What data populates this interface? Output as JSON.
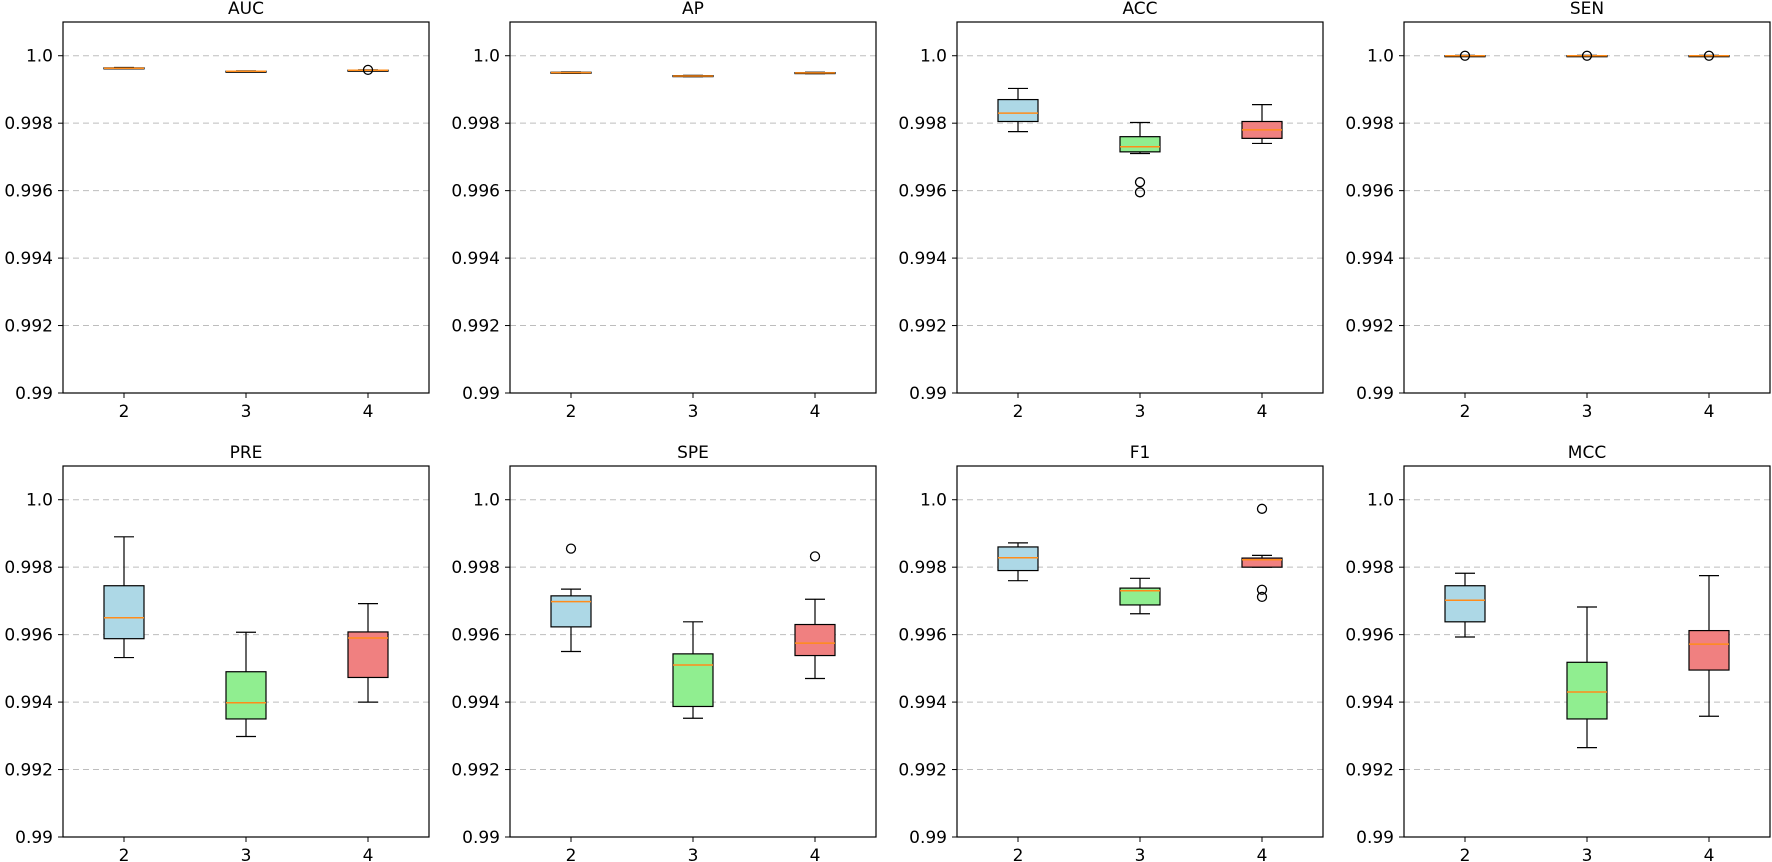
{
  "chart_data": {
    "type": "boxplot",
    "layout": "2x4 grid",
    "ylim": [
      0.99,
      1.001
    ],
    "yticks": [
      "0.99",
      "0.992",
      "0.994",
      "0.996",
      "0.998",
      "1.0"
    ],
    "ytick_values": [
      0.99,
      0.992,
      0.994,
      0.996,
      0.998,
      1.0
    ],
    "categories": [
      "2",
      "3",
      "4"
    ],
    "box_colors": [
      "#add8e6",
      "#90ee90",
      "#f08080"
    ],
    "median_color": "#ff8c1a",
    "grid": "y-dashed",
    "panels": [
      {
        "title": "AUC",
        "boxes": [
          {
            "whislo": 0.99962,
            "q1": 0.99963,
            "med": 0.99963,
            "q3": 0.99964,
            "whishi": 0.99965,
            "fliers": []
          },
          {
            "whislo": 0.99952,
            "q1": 0.99953,
            "med": 0.99954,
            "q3": 0.99954,
            "whishi": 0.99955,
            "fliers": []
          },
          {
            "whislo": 0.99955,
            "q1": 0.99956,
            "med": 0.99957,
            "q3": 0.99957,
            "whishi": 0.99958,
            "fliers": [
              0.99958
            ]
          }
        ]
      },
      {
        "title": "AP",
        "boxes": [
          {
            "whislo": 0.99948,
            "q1": 0.99949,
            "med": 0.9995,
            "q3": 0.99951,
            "whishi": 0.99952,
            "fliers": []
          },
          {
            "whislo": 0.99938,
            "q1": 0.99939,
            "med": 0.9994,
            "q3": 0.99941,
            "whishi": 0.99942,
            "fliers": []
          },
          {
            "whislo": 0.99947,
            "q1": 0.99948,
            "med": 0.99949,
            "q3": 0.9995,
            "whishi": 0.99951,
            "fliers": []
          }
        ]
      },
      {
        "title": "ACC",
        "boxes": [
          {
            "whislo": 0.99775,
            "q1": 0.99805,
            "med": 0.9983,
            "q3": 0.9987,
            "whishi": 0.99903,
            "fliers": []
          },
          {
            "whislo": 0.9971,
            "q1": 0.99715,
            "med": 0.9973,
            "q3": 0.9976,
            "whishi": 0.99802,
            "fliers": [
              0.99625,
              0.99595
            ]
          },
          {
            "whislo": 0.9974,
            "q1": 0.99755,
            "med": 0.9978,
            "q3": 0.99805,
            "whishi": 0.99855,
            "fliers": []
          }
        ]
      },
      {
        "title": "SEN",
        "boxes": [
          {
            "whislo": 0.99999,
            "q1": 1.0,
            "med": 1.0,
            "q3": 1.0,
            "whishi": 1.00001,
            "fliers": [
              1.0
            ]
          },
          {
            "whislo": 0.99999,
            "q1": 1.0,
            "med": 1.0,
            "q3": 1.0,
            "whishi": 1.00001,
            "fliers": [
              1.0
            ]
          },
          {
            "whislo": 0.99999,
            "q1": 1.0,
            "med": 1.0,
            "q3": 1.0,
            "whishi": 1.00001,
            "fliers": [
              1.0
            ]
          }
        ]
      },
      {
        "title": "PRE",
        "boxes": [
          {
            "whislo": 0.99532,
            "q1": 0.99588,
            "med": 0.9965,
            "q3": 0.99745,
            "whishi": 0.9989,
            "fliers": []
          },
          {
            "whislo": 0.99298,
            "q1": 0.9935,
            "med": 0.99398,
            "q3": 0.9949,
            "whishi": 0.99607,
            "fliers": []
          },
          {
            "whislo": 0.994,
            "q1": 0.99473,
            "med": 0.9959,
            "q3": 0.99608,
            "whishi": 0.99692,
            "fliers": []
          }
        ]
      },
      {
        "title": "SPE",
        "boxes": [
          {
            "whislo": 0.9955,
            "q1": 0.99623,
            "med": 0.99698,
            "q3": 0.99715,
            "whishi": 0.99735,
            "fliers": [
              0.99855
            ]
          },
          {
            "whislo": 0.99352,
            "q1": 0.99387,
            "med": 0.9951,
            "q3": 0.99543,
            "whishi": 0.99638,
            "fliers": []
          },
          {
            "whislo": 0.9947,
            "q1": 0.99538,
            "med": 0.99575,
            "q3": 0.9963,
            "whishi": 0.99705,
            "fliers": [
              0.99832
            ]
          }
        ]
      },
      {
        "title": "F1",
        "boxes": [
          {
            "whislo": 0.9976,
            "q1": 0.9979,
            "med": 0.99828,
            "q3": 0.9986,
            "whishi": 0.99872,
            "fliers": []
          },
          {
            "whislo": 0.99662,
            "q1": 0.99688,
            "med": 0.9973,
            "q3": 0.99738,
            "whishi": 0.99767,
            "fliers": []
          },
          {
            "whislo": 0.998,
            "q1": 0.998,
            "med": 0.99822,
            "q3": 0.99827,
            "whishi": 0.99835,
            "fliers": [
              0.99973,
              0.99733,
              0.99712
            ]
          }
        ]
      },
      {
        "title": "MCC",
        "boxes": [
          {
            "whislo": 0.99593,
            "q1": 0.99638,
            "med": 0.99702,
            "q3": 0.99745,
            "whishi": 0.99782,
            "fliers": []
          },
          {
            "whislo": 0.99265,
            "q1": 0.9935,
            "med": 0.9943,
            "q3": 0.99518,
            "whishi": 0.99682,
            "fliers": []
          },
          {
            "whislo": 0.99358,
            "q1": 0.99495,
            "med": 0.99572,
            "q3": 0.99612,
            "whishi": 0.99775,
            "fliers": []
          }
        ]
      }
    ]
  }
}
